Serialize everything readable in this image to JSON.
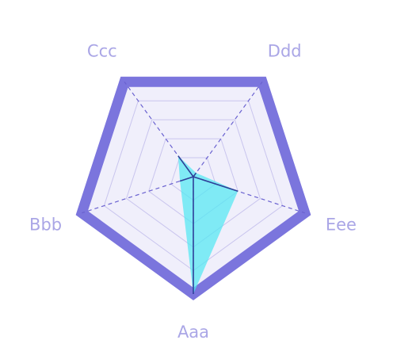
{
  "chart_data": {
    "type": "radar",
    "categories": [
      "Aaa",
      "Bbb",
      "Ccc",
      "Ddd",
      "Eee"
    ],
    "series": [
      {
        "values": [
          1.0,
          0.12,
          0.22,
          0.04,
          0.4
        ],
        "fill_color": "#4ee8f2",
        "stroke_color": "#2f3f99"
      }
    ],
    "rlim": [
      0,
      1
    ],
    "levels": 5,
    "grid": true,
    "colors": {
      "outer_border": "#7b75dd",
      "plot_fill": "#f0effb",
      "grid_lines": "#c9c5ee",
      "spokes": "#6a62d0",
      "labels": "#aaa6e6",
      "series_fill": "#4ee8f2",
      "series_stroke": "#2f3f99"
    }
  }
}
